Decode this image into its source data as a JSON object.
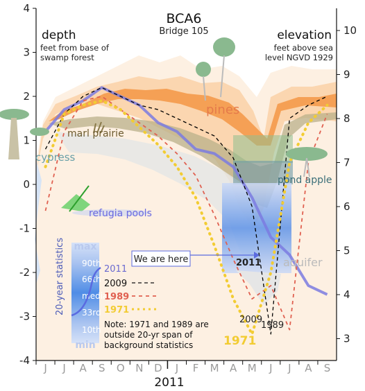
{
  "chart_data": {
    "type": "line",
    "title": "BCA6",
    "subtitle": "Bridge 105",
    "left_axis": {
      "label": "depth",
      "description": "feet from base of swamp forest",
      "ylim": [
        -4,
        4
      ],
      "ticks": [
        "4",
        "3",
        "2",
        "1",
        "0",
        "-1",
        "-2",
        "-3",
        "-4"
      ]
    },
    "right_axis": {
      "label": "elevation",
      "description": "feet above sea level NGVD 1929",
      "ticks": [
        "10",
        "9",
        "8",
        "7",
        "6",
        "5",
        "4",
        "3"
      ]
    },
    "x_axis": {
      "months": [
        "J",
        "J",
        "A",
        "S",
        "O",
        "N",
        "D",
        "J",
        "F",
        "M",
        "A",
        "M",
        "J",
        "J",
        "A",
        "S"
      ],
      "year_label": "2011"
    },
    "habitats": [
      "pines",
      "marl prairie",
      "cypress",
      "pond apple",
      "refugia pools",
      "aquifer"
    ],
    "annotation": "We are here",
    "series": [
      {
        "name": "2011",
        "color": "#7b7be0",
        "style": "solid",
        "values": [
          1.2,
          1.7,
          1.9,
          2.2,
          2.0,
          1.8,
          1.4,
          1.2,
          0.8,
          0.7,
          0.4,
          -0.3,
          -1.2,
          -1.6,
          -2.3,
          -2.5
        ]
      },
      {
        "name": "2009",
        "color": "#000000",
        "style": "dashed",
        "values": [
          0.8,
          1.6,
          2.0,
          2.2,
          2.0,
          1.8,
          1.7,
          1.5,
          1.3,
          1.1,
          0.6,
          -0.5,
          -3.4,
          1.5,
          1.8,
          2.0
        ]
      },
      {
        "name": "1989",
        "color": "#e06050",
        "style": "dashed",
        "values": [
          -0.6,
          1.2,
          1.9,
          2.0,
          1.7,
          1.4,
          1.1,
          0.7,
          0.2,
          -0.7,
          -1.7,
          -2.6,
          -2.3,
          -3.3,
          0.5,
          1.6
        ]
      },
      {
        "name": "1971",
        "color": "#f2cc33",
        "style": "dotted",
        "values": [
          0.4,
          1.6,
          1.8,
          1.9,
          1.7,
          1.3,
          0.9,
          0.4,
          -0.3,
          -1.4,
          -2.6,
          -3.4,
          -2.0,
          0.5,
          1.4,
          1.8
        ]
      }
    ],
    "legend": {
      "statistics_title": "20-year statistics",
      "percentiles": [
        "max",
        "90th",
        "66th",
        "median",
        "33rd",
        "10th",
        "min"
      ],
      "note": "Note: 1971 and 1989 are outside 20-yr span of background statistics"
    },
    "end_labels": [
      "2009",
      "1989",
      "1971",
      "2011"
    ]
  },
  "colors": {
    "band_light": "#fde3c8",
    "band_mid": "#f9c08a",
    "band_dark": "#f59a4a",
    "series_2011": "#7b7be0",
    "series_1989": "#e06050",
    "series_1971": "#f2cc33",
    "pines_text": "#e57a4a",
    "marl_text": "#6b5a2e",
    "cypress_text": "#6aa0a8",
    "pondapple_text": "#3a6e78",
    "refugia_text": "#6a6ae0",
    "aquifer_text": "#bbbbbb"
  }
}
